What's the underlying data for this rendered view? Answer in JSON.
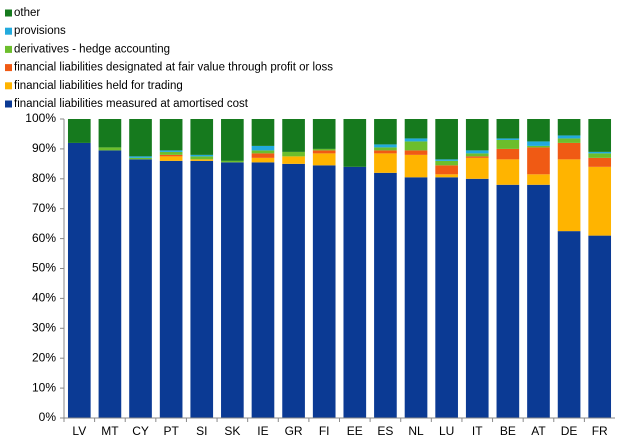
{
  "chart_data": {
    "type": "stacked_bar",
    "categories": [
      "LV",
      "MT",
      "CY",
      "PT",
      "SI",
      "SK",
      "IE",
      "GR",
      "FI",
      "EE",
      "ES",
      "NL",
      "LU",
      "IT",
      "BE",
      "AT",
      "DE",
      "FR"
    ],
    "series": [
      {
        "name": "financial liabilities measured at amortised cost",
        "color": "#0b3a94",
        "values": [
          92,
          89.5,
          86.5,
          86,
          86,
          85.5,
          85.5,
          85,
          84.5,
          84,
          82,
          80.5,
          80.5,
          80,
          78,
          78,
          62.5,
          61
        ]
      },
      {
        "name": "financial liabilities held for trading",
        "color": "#ffb400",
        "values": [
          0,
          0,
          0,
          1.5,
          0.5,
          0,
          1.5,
          2.5,
          4,
          0,
          6.5,
          7.5,
          1,
          7,
          8.5,
          3.5,
          24,
          23
        ]
      },
      {
        "name": "financial liabilities designated at fair value through profit or loss",
        "color": "#f05a14",
        "values": [
          0,
          0,
          0,
          0.5,
          0,
          0,
          1.5,
          0,
          1,
          0,
          1,
          1.5,
          3,
          0.5,
          3.5,
          9,
          5.5,
          3
        ]
      },
      {
        "name": "derivatives - hedge accounting",
        "color": "#6cbe2c",
        "values": [
          0,
          1,
          0.5,
          1,
          1,
          0.5,
          1,
          1.5,
          0.5,
          0,
          1,
          3,
          1.5,
          1,
          3,
          0.5,
          1.5,
          1.5
        ]
      },
      {
        "name": "provisions",
        "color": "#22aadd",
        "values": [
          0,
          0,
          0.5,
          0.5,
          0.5,
          0,
          1.5,
          0,
          0,
          0,
          1,
          1,
          0.5,
          1,
          0.5,
          1.5,
          1,
          0.5
        ]
      },
      {
        "name": "other",
        "color": "#167a1e",
        "values": [
          8,
          9.5,
          12.5,
          10.5,
          12,
          14,
          9,
          11,
          10,
          16,
          8.5,
          6.5,
          13.5,
          10.5,
          6.5,
          7.5,
          5.5,
          11
        ]
      }
    ],
    "ylim": [
      0,
      100
    ],
    "yticks": [
      {
        "value": 0,
        "label": "0%"
      },
      {
        "value": 10,
        "label": "10%"
      },
      {
        "value": 20,
        "label": "20%"
      },
      {
        "value": 30,
        "label": "30%"
      },
      {
        "value": 40,
        "label": "40%"
      },
      {
        "value": 50,
        "label": "50%"
      },
      {
        "value": 60,
        "label": "60%"
      },
      {
        "value": 70,
        "label": "70%"
      },
      {
        "value": 80,
        "label": "80%"
      },
      {
        "value": 90,
        "label": "90%"
      },
      {
        "value": 100,
        "label": "100%"
      }
    ]
  }
}
